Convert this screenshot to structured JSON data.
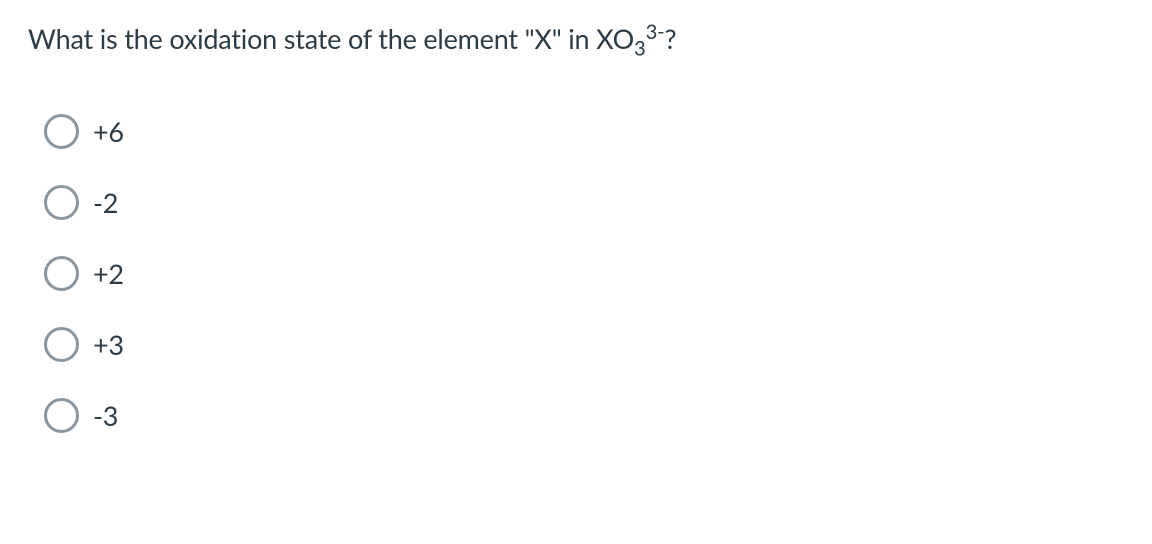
{
  "question": {
    "prefix": "What is the oxidation state of the element \"X\"  in XO",
    "subscript": "3",
    "superscript": "3-",
    "suffix": "?",
    "text_color": "#2d3b45",
    "font_size": 27
  },
  "options": [
    {
      "label": "+6"
    },
    {
      "label": "-2"
    },
    {
      "label": "+2"
    },
    {
      "label": "+3"
    },
    {
      "label": "-3"
    }
  ],
  "styling": {
    "background_color": "#ffffff",
    "radio_border_color": "#8b959e",
    "radio_size": 35,
    "radio_border_width": 3,
    "option_font_size": 27,
    "option_gap": 36
  }
}
